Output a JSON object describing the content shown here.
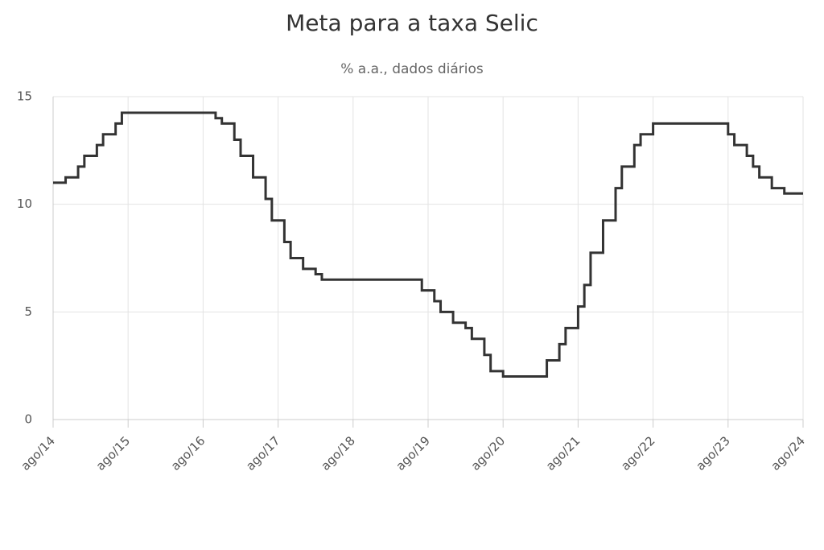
{
  "chart_data": {
    "type": "line",
    "step": "after",
    "title": "Meta para a taxa Selic",
    "subtitle": "% a.a., dados diários",
    "x": [
      "2014-08",
      "2014-10",
      "2014-12",
      "2015-01",
      "2015-03",
      "2015-04",
      "2015-06",
      "2015-07",
      "2016-10",
      "2016-11",
      "2017-01",
      "2017-02",
      "2017-04",
      "2017-06",
      "2017-07",
      "2017-09",
      "2017-10",
      "2017-12",
      "2018-02",
      "2018-03",
      "2019-07",
      "2019-09",
      "2019-10",
      "2019-12",
      "2020-02",
      "2020-03",
      "2020-05",
      "2020-06",
      "2020-08",
      "2021-03",
      "2021-05",
      "2021-06",
      "2021-08",
      "2021-09",
      "2021-10",
      "2021-12",
      "2022-02",
      "2022-03",
      "2022-05",
      "2022-06",
      "2022-08",
      "2023-08",
      "2023-09",
      "2023-11",
      "2023-12",
      "2024-01",
      "2024-03",
      "2024-05",
      "2024-08"
    ],
    "series": [
      {
        "color": "#333333",
        "values": [
          11,
          11.25,
          11.75,
          12.25,
          12.75,
          13.25,
          13.75,
          14.25,
          14,
          13.75,
          13,
          12.25,
          11.25,
          10.25,
          9.25,
          8.25,
          7.5,
          7,
          6.75,
          6.5,
          6,
          5.5,
          5,
          4.5,
          4.25,
          3.75,
          3,
          2.25,
          2,
          2.75,
          3.5,
          4.25,
          5.25,
          6.25,
          7.75,
          9.25,
          10.75,
          11.75,
          12.75,
          13.25,
          13.75,
          13.25,
          12.75,
          12.25,
          11.75,
          11.25,
          10.75,
          10.5,
          10.5
        ]
      }
    ],
    "xlim": [
      "2014-08",
      "2024-08"
    ],
    "xticks": [
      {
        "value": "2014-08",
        "label": "ago/14"
      },
      {
        "value": "2015-08",
        "label": "ago/15"
      },
      {
        "value": "2016-08",
        "label": "ago/16"
      },
      {
        "value": "2017-08",
        "label": "ago/17"
      },
      {
        "value": "2018-08",
        "label": "ago/18"
      },
      {
        "value": "2019-08",
        "label": "ago/19"
      },
      {
        "value": "2020-08",
        "label": "ago/20"
      },
      {
        "value": "2021-08",
        "label": "ago/21"
      },
      {
        "value": "2022-08",
        "label": "ago/22"
      },
      {
        "value": "2023-08",
        "label": "ago/23"
      },
      {
        "value": "2024-08",
        "label": "ago/24"
      }
    ],
    "ylim": [
      0,
      15
    ],
    "yticks": [
      0,
      5,
      10,
      15
    ],
    "grid": true
  }
}
